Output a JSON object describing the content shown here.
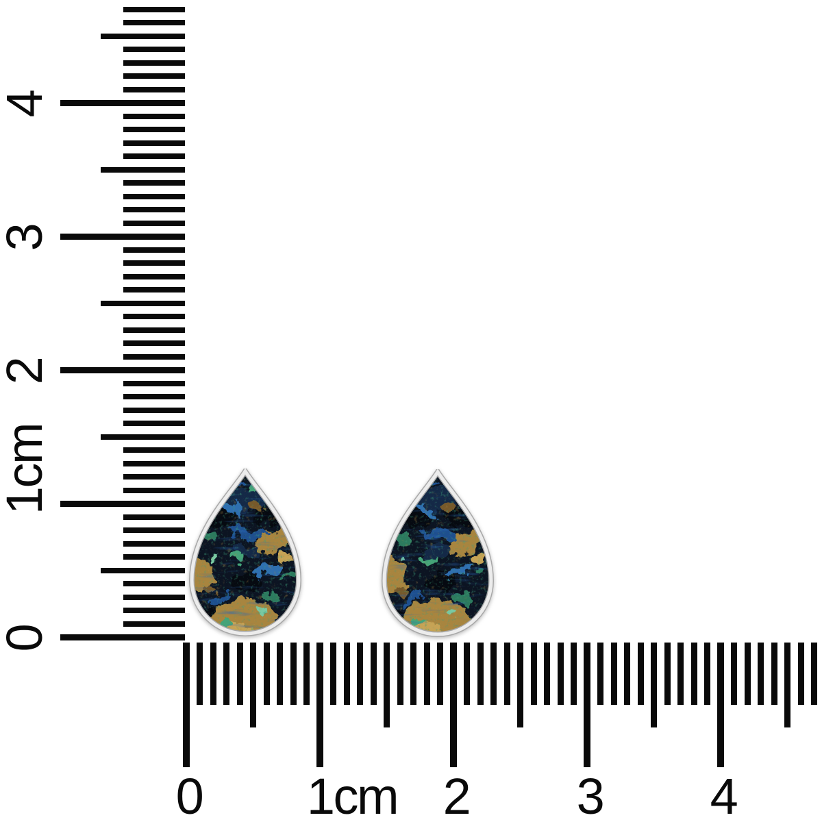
{
  "scene": {
    "type": "product scale photo",
    "description": "Two pear-shaped azurite-malachite style gemstone stud earrings with silver bezels, shown to scale between a vertical and a horizontal centimeter ruler on a white background",
    "background_color": "#ffffff"
  },
  "rulers": {
    "tick_color": "#0a0a0a",
    "label_color": "#0a0a0a",
    "unit": "cm",
    "vertical": {
      "labels": [
        "0",
        "1cm",
        "2",
        "3",
        "4"
      ],
      "tick_count": 48
    },
    "horizontal": {
      "labels": [
        "0",
        "1cm",
        "2",
        "3",
        "4"
      ],
      "tick_count": 48
    }
  },
  "earrings": {
    "count": 2,
    "shape": "pear / teardrop cabochon",
    "approx_width_cm": 0.85,
    "approx_height_cm": 1.25,
    "bezel": {
      "face": "#ececec",
      "edge": "#a8a8a8"
    },
    "palette": {
      "base": "#0c1422",
      "black": "#060a11",
      "navy": "#142947",
      "blue": "#1e4f8e",
      "sky": "#2f6fb0",
      "teal": "#2c7a5e",
      "green": "#45a378",
      "mint": "#79c9a2",
      "tan": "#a8853f",
      "gold": "#c6a355",
      "brown": "#77592a"
    }
  }
}
